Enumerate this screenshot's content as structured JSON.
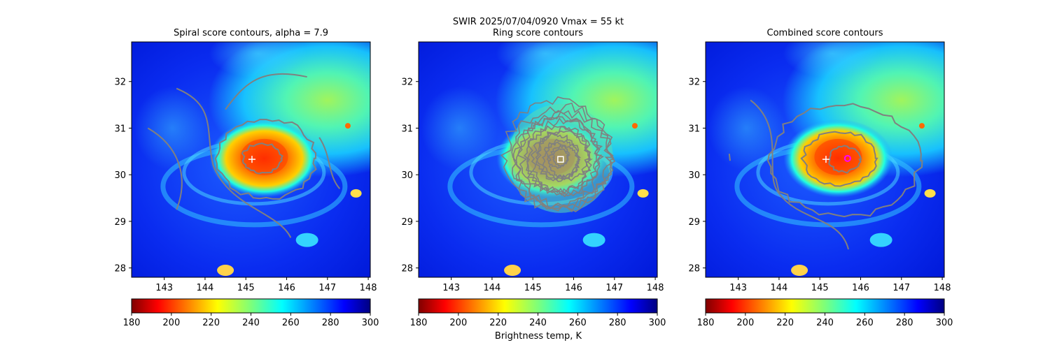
{
  "figure": {
    "suptitle_line1": "SWIR  2025/07/04/0920    Vmax = 55 kt",
    "colorbar_label": "Brightness temp, K"
  },
  "chart_data": [
    {
      "type": "heatmap",
      "title": "Spiral score contours, alpha =  7.9",
      "xlabel": "",
      "ylabel": "",
      "xlim": [
        142.2,
        148.05
      ],
      "ylim": [
        27.8,
        32.85
      ],
      "x_ticks": [
        143,
        144,
        145,
        146,
        147,
        148
      ],
      "y_ticks": [
        28,
        29,
        30,
        31,
        32
      ],
      "colorbar": {
        "cmap": "jet_r",
        "range": [
          180,
          300
        ],
        "ticks": [
          180,
          200,
          220,
          240,
          260,
          280,
          300
        ]
      },
      "center_marker": {
        "symbol": "+",
        "lon": 145.15,
        "lat": 30.33,
        "color": "#ffffff"
      },
      "contour_color": "#808080",
      "grid": false
    },
    {
      "type": "heatmap",
      "title": "Ring score contours",
      "xlabel": "",
      "ylabel": "",
      "xlim": [
        142.2,
        148.05
      ],
      "ylim": [
        27.8,
        32.85
      ],
      "x_ticks": [
        143,
        144,
        145,
        146,
        147,
        148
      ],
      "y_ticks": [
        28,
        29,
        30,
        31,
        32
      ],
      "colorbar": {
        "cmap": "jet_r",
        "range": [
          180,
          300
        ],
        "ticks": [
          180,
          200,
          220,
          240,
          260,
          280,
          300
        ]
      },
      "center_marker": {
        "symbol": "square",
        "lon": 145.68,
        "lat": 30.33,
        "color": "#ffffff"
      },
      "contour_color": "#808080",
      "grid": false
    },
    {
      "type": "heatmap",
      "title": "Combined score contours",
      "xlabel": "",
      "ylabel": "",
      "xlim": [
        142.2,
        148.05
      ],
      "ylim": [
        27.8,
        32.85
      ],
      "x_ticks": [
        143,
        144,
        145,
        146,
        147,
        148
      ],
      "y_ticks": [
        28,
        29,
        30,
        31,
        32
      ],
      "colorbar": {
        "cmap": "jet_r",
        "range": [
          180,
          300
        ],
        "ticks": [
          180,
          200,
          220,
          240,
          260,
          280,
          300
        ]
      },
      "center_marker": {
        "symbol": "+",
        "lon": 145.15,
        "lat": 30.33,
        "color": "#ffffff"
      },
      "best_center": {
        "symbol": "circle",
        "lon": 145.68,
        "lat": 30.35,
        "color": "#ff00ff"
      },
      "contour_color": "#808080",
      "grid": false
    }
  ]
}
